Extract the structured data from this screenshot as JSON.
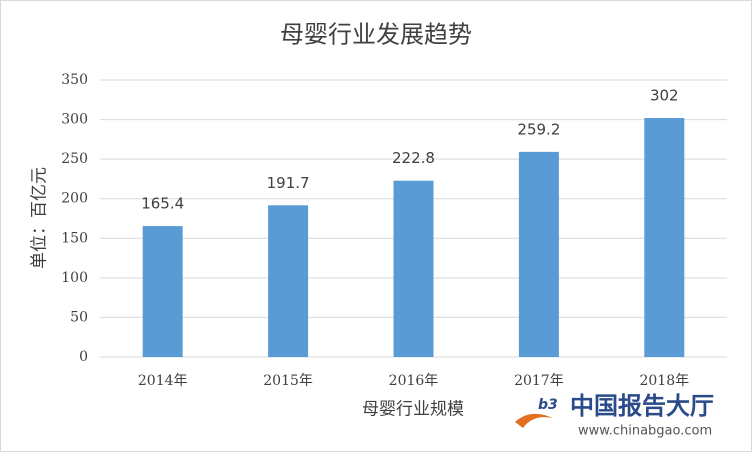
{
  "chart_data": {
    "type": "bar",
    "title": "母婴行业发展趋势",
    "y_label": "单位：百亿元",
    "x_label": "母婴行业规模",
    "categories": [
      "2014年",
      "2015年",
      "2016年",
      "2017年",
      "2018年"
    ],
    "values": [
      165.4,
      191.7,
      222.8,
      259.2,
      302
    ],
    "color": "#5b9bd5",
    "ylim": [
      0,
      350
    ],
    "yticks": [
      0,
      50,
      100,
      150,
      200,
      250,
      300,
      350
    ],
    "grid": true,
    "data_labels": true
  },
  "watermark": {
    "name": "中国报告大厅",
    "url": "www.chinabgao.com"
  }
}
